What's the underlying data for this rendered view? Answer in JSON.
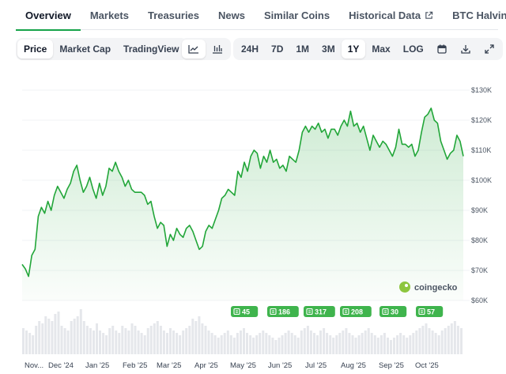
{
  "tabs": [
    {
      "label": "Overview",
      "active": true,
      "external": false
    },
    {
      "label": "Markets",
      "active": false,
      "external": false
    },
    {
      "label": "Treasuries",
      "active": false,
      "external": false
    },
    {
      "label": "News",
      "active": false,
      "external": false
    },
    {
      "label": "Similar Coins",
      "active": false,
      "external": false
    },
    {
      "label": "Historical Data",
      "active": false,
      "external": true
    },
    {
      "label": "BTC Halving",
      "active": false,
      "external": true
    }
  ],
  "toolbar": {
    "chart_modes": [
      {
        "label": "Price",
        "active": true
      },
      {
        "label": "Market Cap",
        "active": false
      },
      {
        "label": "TradingView",
        "active": false
      }
    ],
    "chart_style_icons": [
      "line-chart-icon",
      "candlestick-chart-icon"
    ],
    "ranges": [
      {
        "label": "24H",
        "active": false
      },
      {
        "label": "7D",
        "active": false
      },
      {
        "label": "1M",
        "active": false
      },
      {
        "label": "3M",
        "active": false
      },
      {
        "label": "1Y",
        "active": true
      },
      {
        "label": "Max",
        "active": false
      },
      {
        "label": "LOG",
        "active": false
      }
    ],
    "action_icons": [
      "calendar-icon",
      "download-icon",
      "expand-icon"
    ]
  },
  "colors": {
    "accent": "#16a34a",
    "line": "#22a639",
    "news_badge": "#3fb44d",
    "volume": "#e5e7eb"
  },
  "watermark": "coingecko",
  "news_badges": [
    {
      "count": "45",
      "month": "May '25"
    },
    {
      "count": "186",
      "month": "Jun '25"
    },
    {
      "count": "317",
      "month": "Jul '25"
    },
    {
      "count": "208",
      "month": "Aug '25"
    },
    {
      "count": "30",
      "month": "Sep '25"
    },
    {
      "count": "57",
      "month": "Oct '25"
    }
  ],
  "chart_data": {
    "type": "line",
    "series": [
      {
        "values": [
          72,
          70.5,
          68,
          75,
          77,
          88,
          91,
          89,
          93,
          90,
          95,
          98,
          96,
          94,
          97,
          99,
          103,
          105,
          100,
          96,
          98,
          101,
          97,
          94,
          99,
          95,
          98,
          104,
          103,
          106,
          103,
          101,
          98,
          100,
          97,
          96,
          96,
          96,
          95,
          92,
          93,
          88,
          84,
          86,
          85,
          78,
          82,
          80,
          84,
          82,
          81,
          84,
          85,
          83,
          80,
          77,
          78,
          83,
          85,
          84,
          87,
          90,
          94,
          95,
          97,
          96,
          95,
          103,
          101,
          106,
          103,
          108,
          110,
          109,
          104,
          108,
          106,
          110,
          106,
          107,
          104,
          105,
          103,
          108,
          107,
          106,
          110,
          116,
          118,
          116,
          118,
          117,
          119,
          116,
          117,
          114,
          117,
          117,
          115,
          118,
          120,
          118,
          123,
          118,
          119,
          116,
          118,
          114,
          110,
          115,
          113,
          111,
          113,
          112,
          110,
          108,
          111,
          117,
          112,
          112,
          111,
          112,
          108,
          110,
          116,
          121,
          122,
          124,
          120,
          119,
          113,
          110,
          107,
          109,
          110,
          115,
          113,
          108
        ]
      }
    ],
    "x_range": [
      "2024-11-04",
      "2025-11-03"
    ],
    "xaxis": {
      "ticks": [
        "Nov...",
        "Dec '24",
        "Jan '25",
        "Feb '25",
        "Mar '25",
        "Apr '25",
        "May '25",
        "Jun '25",
        "Jul '25",
        "Aug '25",
        "Sep '25",
        "Oct '25"
      ]
    },
    "yaxis": {
      "ticks": [
        "$130K",
        "$120K",
        "$110K",
        "$100K",
        "$90K",
        "$80K",
        "$70K",
        "$60K"
      ],
      "tick_values": [
        130,
        120,
        110,
        100,
        90,
        80,
        70,
        60
      ],
      "unit": "K USD"
    },
    "ylim": [
      60,
      130
    ],
    "volume": [
      0.55,
      0.5,
      0.45,
      0.4,
      0.6,
      0.7,
      0.65,
      0.8,
      0.75,
      0.7,
      0.85,
      0.9,
      0.6,
      0.55,
      0.5,
      0.7,
      0.75,
      0.8,
      0.95,
      0.7,
      0.6,
      0.55,
      0.5,
      0.65,
      0.5,
      0.45,
      0.4,
      0.55,
      0.6,
      0.5,
      0.45,
      0.6,
      0.55,
      0.5,
      0.65,
      0.6,
      0.5,
      0.45,
      0.4,
      0.55,
      0.6,
      0.65,
      0.7,
      0.6,
      0.5,
      0.45,
      0.55,
      0.5,
      0.45,
      0.4,
      0.5,
      0.55,
      0.6,
      0.75,
      0.7,
      0.8,
      0.65,
      0.6,
      0.5,
      0.45,
      0.4,
      0.35,
      0.4,
      0.45,
      0.5,
      0.4,
      0.35,
      0.45,
      0.5,
      0.55,
      0.45,
      0.4,
      0.35,
      0.4,
      0.45,
      0.5,
      0.45,
      0.4,
      0.35,
      0.3,
      0.35,
      0.4,
      0.45,
      0.5,
      0.45,
      0.4,
      0.35,
      0.5,
      0.55,
      0.6,
      0.5,
      0.45,
      0.4,
      0.5,
      0.55,
      0.45,
      0.4,
      0.35,
      0.4,
      0.45,
      0.5,
      0.55,
      0.45,
      0.4,
      0.35,
      0.4,
      0.45,
      0.5,
      0.55,
      0.45,
      0.4,
      0.35,
      0.4,
      0.45,
      0.35,
      0.3,
      0.35,
      0.4,
      0.45,
      0.4,
      0.35,
      0.4,
      0.45,
      0.5,
      0.55,
      0.6,
      0.65,
      0.55,
      0.5,
      0.45,
      0.4,
      0.5,
      0.55,
      0.6,
      0.65,
      0.7,
      0.6,
      0.55
    ],
    "grid": true,
    "legend": "none"
  }
}
